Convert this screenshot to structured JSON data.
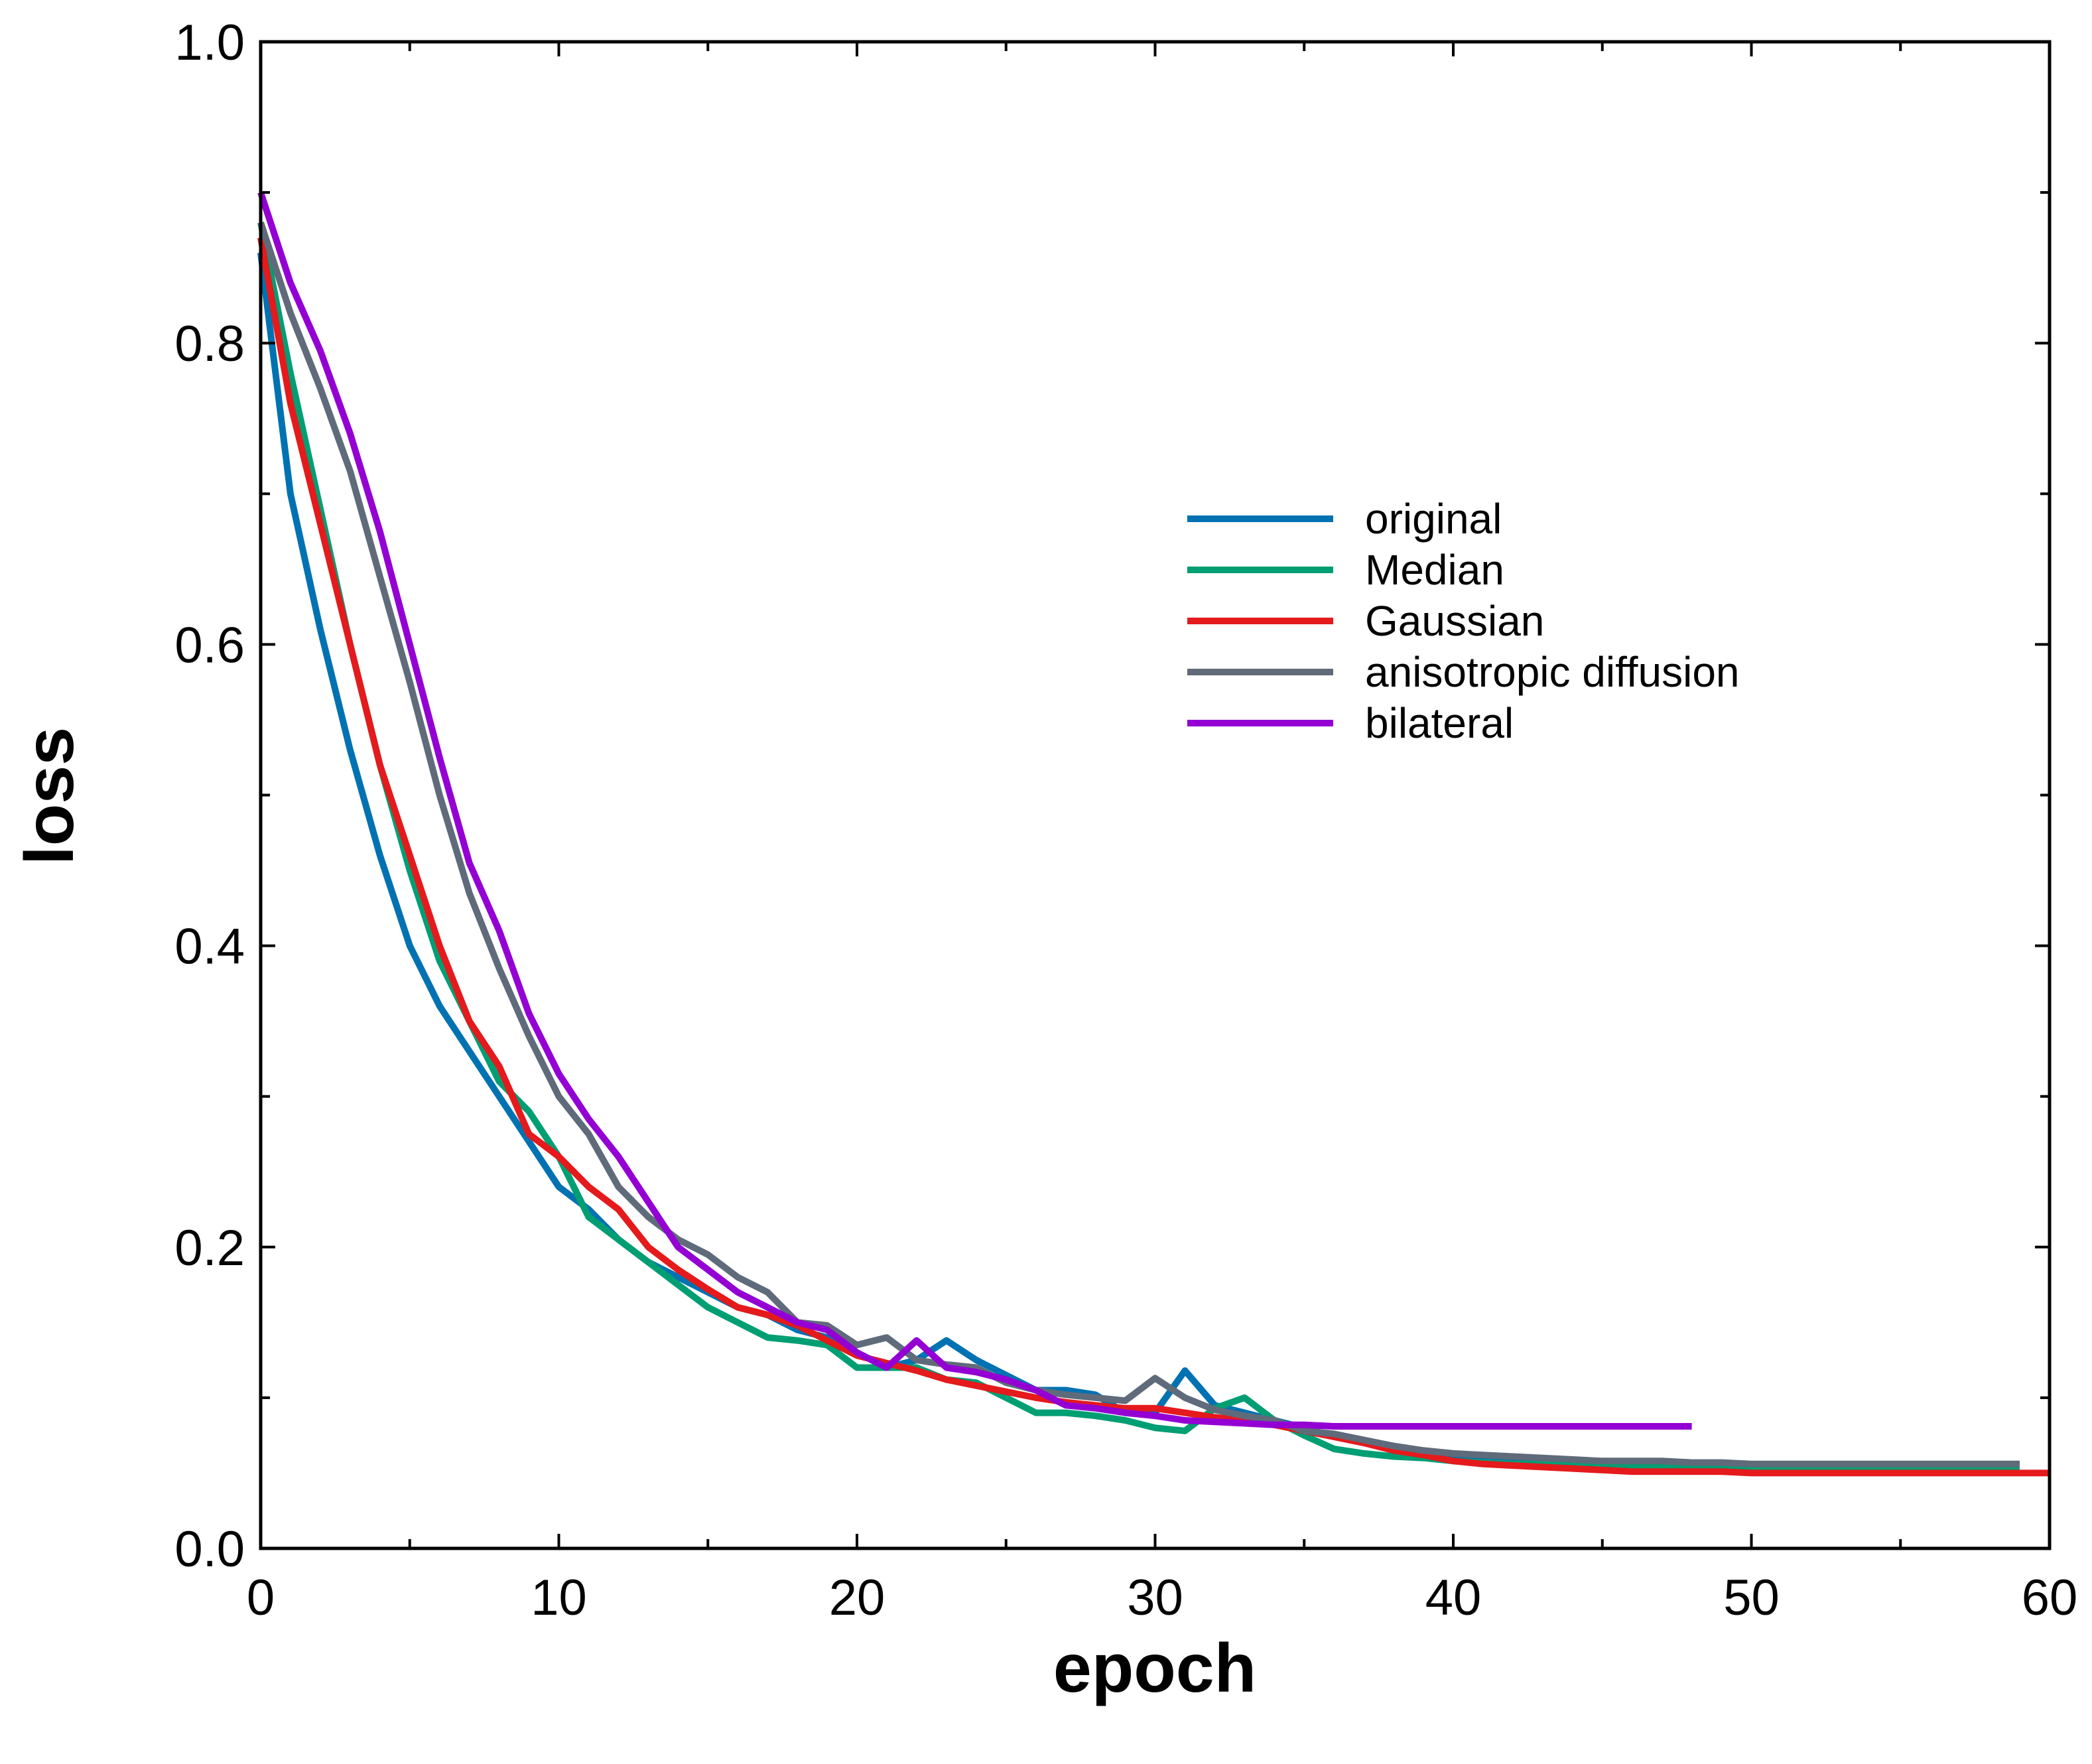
{
  "chart_data": {
    "type": "line",
    "title": "",
    "xlabel": "epoch",
    "ylabel": "loss",
    "xlim": [
      0,
      60
    ],
    "ylim": [
      0,
      1.0
    ],
    "x_ticks": [
      0,
      10,
      20,
      30,
      40,
      50,
      60
    ],
    "x_tick_labels": [
      "0",
      "10",
      "20",
      "30",
      "40",
      "50",
      "60"
    ],
    "x_minor_ticks": [
      5,
      15,
      25,
      35,
      45,
      55
    ],
    "y_ticks": [
      0,
      0.2,
      0.4,
      0.6,
      0.8,
      1.0
    ],
    "y_tick_labels": [
      "0.0",
      "0.2",
      "0.4",
      "0.6",
      "0.8",
      "1.0"
    ],
    "y_minor_ticks": [
      0.1,
      0.3,
      0.5,
      0.7,
      0.9
    ],
    "grid": false,
    "legend_position": "upper-right-center",
    "series": [
      {
        "name": "original",
        "color": "#0072B2",
        "x": [
          0,
          1,
          2,
          3,
          4,
          5,
          6,
          7,
          8,
          9,
          10,
          11,
          12,
          13,
          14,
          15,
          16,
          17,
          18,
          19,
          20,
          21,
          22,
          23,
          24,
          25,
          26,
          27,
          28,
          29,
          30,
          31,
          32,
          33,
          34,
          35,
          36,
          37,
          38,
          39,
          40,
          41,
          42,
          43,
          44,
          45,
          46,
          47,
          48,
          49,
          50,
          51,
          52,
          53,
          54,
          55,
          56,
          57,
          58,
          59
        ],
        "values": [
          0.86,
          0.7,
          0.61,
          0.53,
          0.46,
          0.4,
          0.36,
          0.33,
          0.3,
          0.27,
          0.24,
          0.225,
          0.205,
          0.19,
          0.18,
          0.17,
          0.16,
          0.155,
          0.145,
          0.14,
          0.13,
          0.12,
          0.125,
          0.138,
          0.125,
          0.115,
          0.105,
          0.105,
          0.102,
          0.09,
          0.09,
          0.118,
          0.095,
          0.09,
          0.085,
          0.08,
          0.074,
          0.07,
          0.066,
          0.062,
          0.06,
          0.058,
          0.057,
          0.056,
          0.056,
          0.055,
          0.055,
          0.055,
          0.055,
          0.054,
          0.054,
          0.054,
          0.054,
          0.054,
          0.054,
          0.054,
          0.054,
          0.054,
          0.054,
          0.054
        ]
      },
      {
        "name": "Median",
        "color": "#009E73",
        "x": [
          0,
          1,
          2,
          3,
          4,
          5,
          6,
          7,
          8,
          9,
          10,
          11,
          12,
          13,
          14,
          15,
          16,
          17,
          18,
          19,
          20,
          21,
          22,
          23,
          24,
          25,
          26,
          27,
          28,
          29,
          30,
          31,
          32,
          33,
          34,
          35,
          36,
          37,
          38,
          39,
          40,
          41,
          42,
          43,
          44,
          45,
          46,
          47,
          48,
          49,
          50,
          51,
          52,
          53,
          54,
          55,
          56,
          57,
          58,
          59
        ],
        "values": [
          0.88,
          0.78,
          0.69,
          0.6,
          0.52,
          0.45,
          0.39,
          0.35,
          0.31,
          0.29,
          0.26,
          0.22,
          0.205,
          0.19,
          0.175,
          0.16,
          0.15,
          0.14,
          0.138,
          0.135,
          0.12,
          0.12,
          0.12,
          0.112,
          0.11,
          0.1,
          0.09,
          0.09,
          0.088,
          0.085,
          0.08,
          0.078,
          0.093,
          0.1,
          0.085,
          0.075,
          0.066,
          0.063,
          0.061,
          0.06,
          0.058,
          0.057,
          0.056,
          0.056,
          0.055,
          0.055,
          0.055,
          0.055,
          0.055,
          0.054,
          0.054,
          0.054,
          0.054,
          0.054,
          0.054,
          0.054,
          0.054,
          0.054,
          0.054,
          0.054
        ]
      },
      {
        "name": "Gaussian",
        "color": "#E41A1C",
        "x": [
          0,
          1,
          2,
          3,
          4,
          5,
          6,
          7,
          8,
          9,
          10,
          11,
          12,
          13,
          14,
          15,
          16,
          17,
          18,
          19,
          20,
          21,
          22,
          23,
          24,
          25,
          26,
          27,
          28,
          29,
          30,
          31,
          32,
          33,
          34,
          35,
          36,
          37,
          38,
          39,
          40,
          41,
          42,
          43,
          44,
          45,
          46,
          47,
          48,
          49,
          50,
          51,
          52,
          53,
          54,
          55,
          56,
          57,
          58,
          59,
          60
        ],
        "values": [
          0.87,
          0.76,
          0.68,
          0.6,
          0.52,
          0.46,
          0.4,
          0.35,
          0.32,
          0.275,
          0.26,
          0.24,
          0.225,
          0.2,
          0.185,
          0.172,
          0.16,
          0.155,
          0.148,
          0.138,
          0.128,
          0.123,
          0.118,
          0.112,
          0.108,
          0.104,
          0.1,
          0.097,
          0.095,
          0.093,
          0.093,
          0.09,
          0.087,
          0.085,
          0.082,
          0.078,
          0.074,
          0.07,
          0.065,
          0.062,
          0.058,
          0.056,
          0.055,
          0.054,
          0.053,
          0.052,
          0.051,
          0.051,
          0.051,
          0.051,
          0.05,
          0.05,
          0.05,
          0.05,
          0.05,
          0.05,
          0.05,
          0.05,
          0.05,
          0.05,
          0.05
        ]
      },
      {
        "name": "anisotropic diffusion",
        "color": "#5F6B7A",
        "x": [
          0,
          1,
          2,
          3,
          4,
          5,
          6,
          7,
          8,
          9,
          10,
          11,
          12,
          13,
          14,
          15,
          16,
          17,
          18,
          19,
          20,
          21,
          22,
          23,
          24,
          25,
          26,
          27,
          28,
          29,
          30,
          31,
          32,
          33,
          34,
          35,
          36,
          37,
          38,
          39,
          40,
          41,
          42,
          43,
          44,
          45,
          46,
          47,
          48,
          49,
          50,
          51,
          52,
          53,
          54,
          55,
          56,
          57,
          58,
          59
        ],
        "values": [
          0.88,
          0.82,
          0.77,
          0.715,
          0.645,
          0.575,
          0.5,
          0.435,
          0.385,
          0.34,
          0.3,
          0.275,
          0.24,
          0.22,
          0.205,
          0.195,
          0.18,
          0.17,
          0.15,
          0.148,
          0.135,
          0.14,
          0.125,
          0.122,
          0.12,
          0.11,
          0.105,
          0.102,
          0.1,
          0.098,
          0.113,
          0.1,
          0.092,
          0.088,
          0.085,
          0.078,
          0.076,
          0.072,
          0.068,
          0.065,
          0.063,
          0.062,
          0.061,
          0.06,
          0.059,
          0.058,
          0.058,
          0.058,
          0.057,
          0.057,
          0.056,
          0.056,
          0.056,
          0.056,
          0.056,
          0.056,
          0.056,
          0.056,
          0.056,
          0.056
        ]
      },
      {
        "name": "bilateral",
        "color": "#9400D3",
        "x": [
          0,
          1,
          2,
          3,
          4,
          5,
          6,
          7,
          8,
          9,
          10,
          11,
          12,
          13,
          14,
          15,
          16,
          17,
          18,
          19,
          20,
          21,
          22,
          23,
          24,
          25,
          26,
          27,
          28,
          29,
          30,
          31,
          32,
          33,
          34,
          35,
          36,
          37,
          38,
          39,
          40,
          41,
          42,
          43,
          44,
          45,
          46,
          47,
          48
        ],
        "values": [
          0.9,
          0.84,
          0.795,
          0.74,
          0.675,
          0.6,
          0.525,
          0.455,
          0.41,
          0.355,
          0.315,
          0.285,
          0.26,
          0.23,
          0.2,
          0.185,
          0.17,
          0.16,
          0.15,
          0.145,
          0.13,
          0.12,
          0.138,
          0.12,
          0.117,
          0.112,
          0.105,
          0.095,
          0.093,
          0.09,
          0.088,
          0.085,
          0.084,
          0.083,
          0.082,
          0.082,
          0.081,
          0.081,
          0.081,
          0.081,
          0.081,
          0.081,
          0.081,
          0.081,
          0.081,
          0.081,
          0.081,
          0.081,
          0.081
        ]
      }
    ]
  }
}
